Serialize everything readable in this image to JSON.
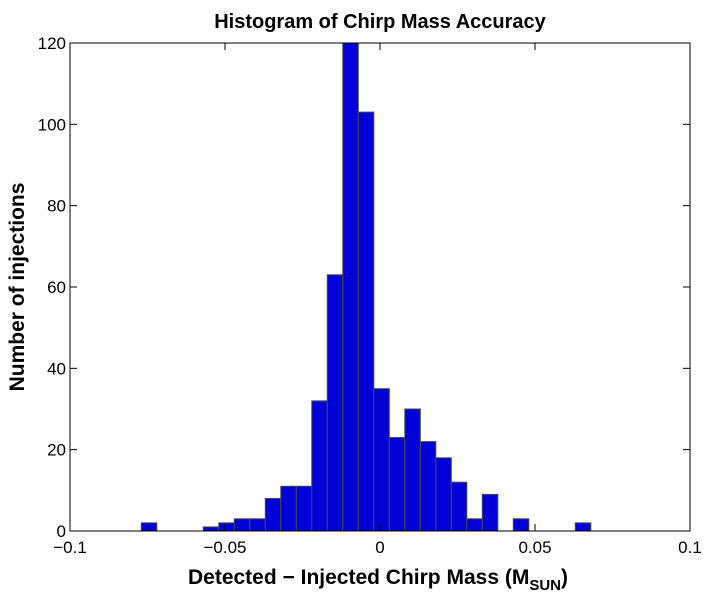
{
  "chart_data": {
    "type": "bar",
    "title": "Histogram of Chirp Mass Accuracy",
    "xlabel": "Detected − Injected Chirp Mass (M",
    "xlabel_subscript": "SUN",
    "xlabel_suffix": ")",
    "ylabel": "Number of injections",
    "xlim": [
      -0.1,
      0.1
    ],
    "ylim": [
      0,
      120
    ],
    "xticks": [
      -0.1,
      -0.05,
      0,
      0.05,
      0.1
    ],
    "xtick_labels": [
      "−0.1",
      "−0.05",
      "0",
      "0.05",
      "0.1"
    ],
    "yticks": [
      0,
      20,
      40,
      60,
      80,
      100,
      120
    ],
    "ytick_labels": [
      "0",
      "20",
      "40",
      "60",
      "80",
      "100",
      "120"
    ],
    "bin_width": 0.005,
    "bins": [
      {
        "x": -0.0745,
        "count": 2
      },
      {
        "x": -0.0545,
        "count": 1
      },
      {
        "x": -0.0495,
        "count": 2
      },
      {
        "x": -0.0445,
        "count": 3
      },
      {
        "x": -0.0395,
        "count": 3
      },
      {
        "x": -0.0345,
        "count": 8
      },
      {
        "x": -0.0295,
        "count": 11
      },
      {
        "x": -0.0245,
        "count": 11
      },
      {
        "x": -0.0195,
        "count": 32
      },
      {
        "x": -0.0145,
        "count": 63
      },
      {
        "x": -0.0095,
        "count": 120
      },
      {
        "x": -0.0045,
        "count": 103
      },
      {
        "x": 0.0005,
        "count": 35
      },
      {
        "x": 0.0055,
        "count": 23
      },
      {
        "x": 0.0105,
        "count": 30
      },
      {
        "x": 0.0155,
        "count": 22
      },
      {
        "x": 0.0205,
        "count": 18
      },
      {
        "x": 0.0255,
        "count": 12
      },
      {
        "x": 0.0305,
        "count": 3
      },
      {
        "x": 0.0355,
        "count": 9
      },
      {
        "x": 0.0455,
        "count": 3
      },
      {
        "x": 0.0655,
        "count": 2
      }
    ],
    "grid": false,
    "bar_color": "#0000d6",
    "edge_color": "#4a4a4a"
  }
}
